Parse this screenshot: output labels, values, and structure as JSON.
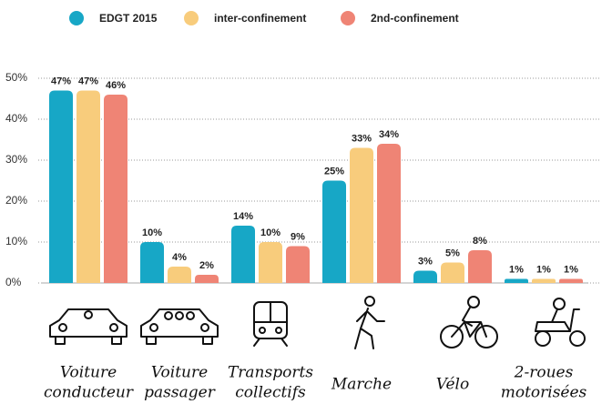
{
  "chart_data": {
    "type": "bar",
    "categories": [
      [
        "Voiture",
        "conducteur"
      ],
      [
        "Voiture",
        "passager"
      ],
      [
        "Transports",
        "collectifs"
      ],
      [
        "Marche"
      ],
      [
        "Vélo"
      ],
      [
        "2-roues",
        "motorisées"
      ]
    ],
    "series": [
      {
        "name": "EDGT 2015",
        "color": "#17a7c6",
        "values": [
          47,
          10,
          14,
          25,
          3,
          1
        ],
        "value_labels": [
          "47%",
          "10%",
          "14%",
          "25%",
          "3%",
          "1%"
        ]
      },
      {
        "name": "inter-confinement",
        "color": "#f8cc7c",
        "values": [
          47,
          4,
          10,
          33,
          5,
          1
        ],
        "value_labels": [
          "47%",
          "4%",
          "10%",
          "33%",
          "5%",
          "1%"
        ]
      },
      {
        "name": "2nd-confinement",
        "color": "#ef8475",
        "values": [
          46,
          2,
          9,
          34,
          8,
          1
        ],
        "value_labels": [
          "46%",
          "2%",
          "9%",
          "34%",
          "8%",
          "1%"
        ]
      }
    ],
    "ylim": [
      0,
      50
    ],
    "yticks": [
      {
        "value": 0,
        "label": "0%"
      },
      {
        "value": 10,
        "label": "10%"
      },
      {
        "value": 20,
        "label": "20%"
      },
      {
        "value": 30,
        "label": "30%"
      },
      {
        "value": 40,
        "label": "40%"
      },
      {
        "value": 50,
        "label": "50%"
      }
    ],
    "grid": true
  }
}
